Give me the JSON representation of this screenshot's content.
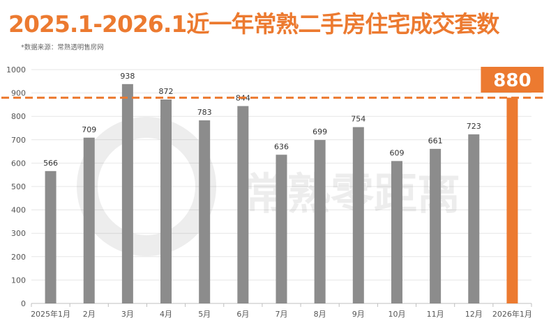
{
  "title": "2025.1-2026.1近一年常熟二手房住宅成交套数",
  "source_note": "*数据来源：常熟透明售房网",
  "watermark": "常熟零距离",
  "colors": {
    "title": "#ec7a30",
    "bar": "#8c8c8c",
    "highlight_bar": "#ec7a30",
    "reference_line": "#ec7a30",
    "grid": "#e6e6e6"
  },
  "chart_data": {
    "type": "bar",
    "title": "2025.1-2026.1近一年常熟二手房住宅成交套数",
    "xlabel": "",
    "ylabel": "",
    "ylim": [
      0,
      1000
    ],
    "yticks": [
      0,
      100,
      200,
      300,
      400,
      500,
      600,
      700,
      800,
      900,
      1000
    ],
    "grid": true,
    "legend": "none",
    "categories": [
      "2025年1月",
      "2月",
      "3月",
      "4月",
      "5月",
      "6月",
      "7月",
      "8月",
      "9月",
      "10月",
      "11月",
      "12月",
      "2026年1月"
    ],
    "values": [
      566,
      709,
      938,
      872,
      783,
      844,
      636,
      699,
      754,
      609,
      661,
      723,
      880
    ],
    "data_labels": [
      "566",
      "709",
      "938",
      "872",
      "783",
      "844",
      "636",
      "699",
      "754",
      "609",
      "661",
      "723",
      ""
    ],
    "highlight_index": 12,
    "reference_line": {
      "value": 880,
      "style": "dashed"
    },
    "callout": "880"
  }
}
